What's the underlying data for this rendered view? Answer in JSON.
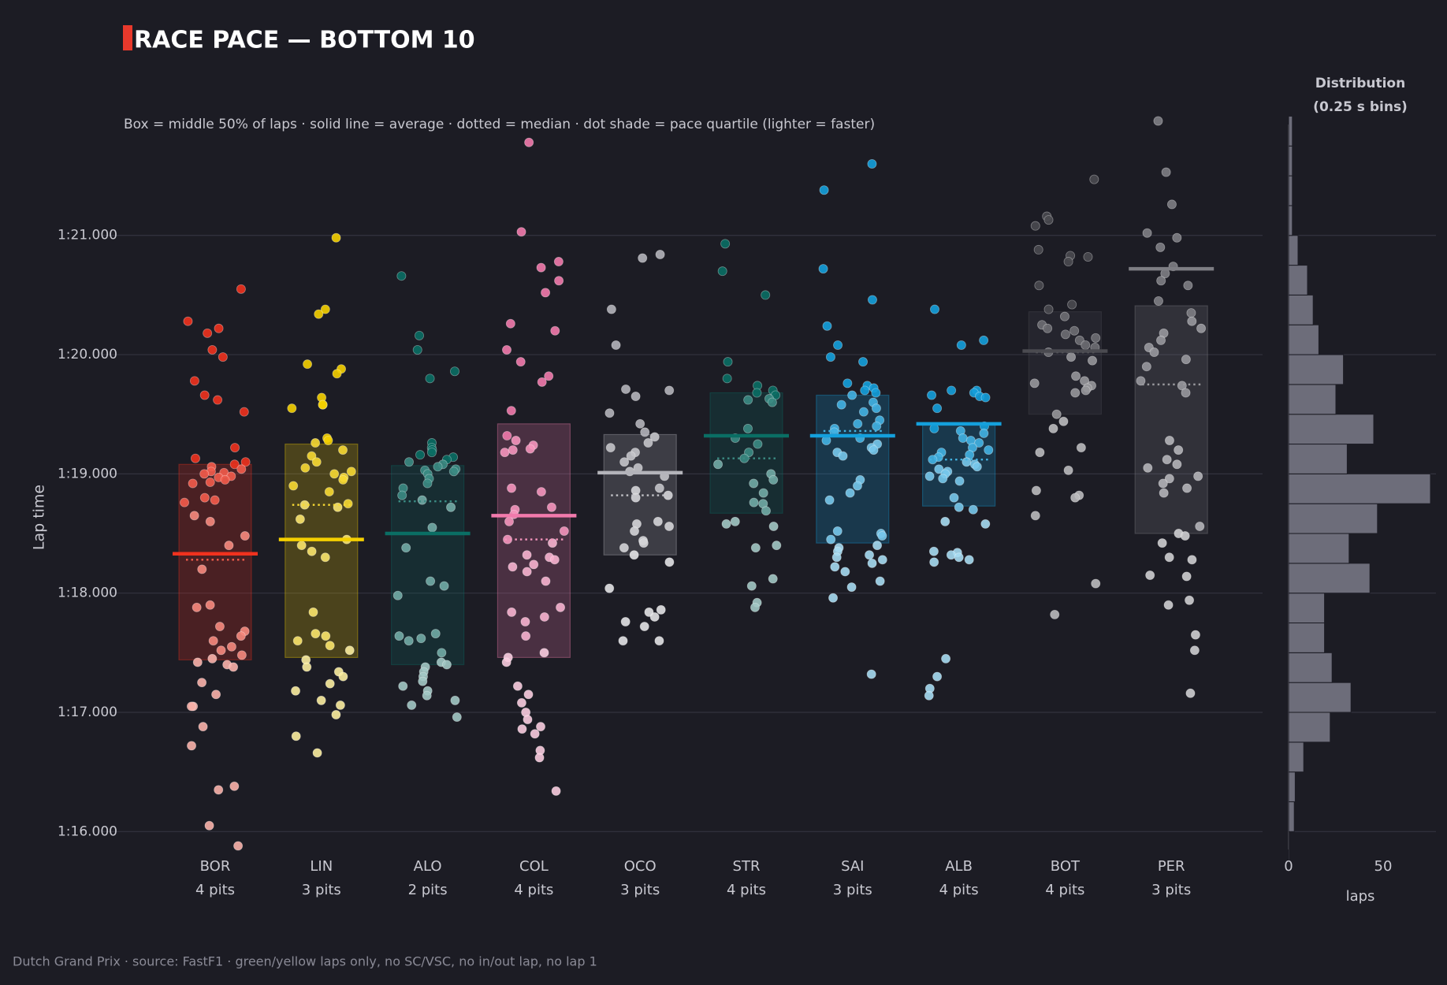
{
  "title": "RACE PACE — BOTTOM 10",
  "subtitle": "Box = middle 50% of laps · solid line = average · dotted = median · dot shade = pace quartile (lighter = faster)",
  "footer": "Dutch Grand Prix  ·  source: FastF1  ·  green/yellow laps only, no SC/VSC, no in/out lap, no lap 1",
  "colors": {
    "background": "#1c1c24",
    "accent": "#e8392c",
    "hist": "#6d6d7a"
  },
  "chart_data": [
    {
      "type": "box-strip",
      "ylabel": "Lap time",
      "y_ticks": [
        {
          "value": 76.0,
          "label": "1:16.000"
        },
        {
          "value": 77.0,
          "label": "1:17.000"
        },
        {
          "value": 78.0,
          "label": "1:18.000"
        },
        {
          "value": 79.0,
          "label": "1:19.000"
        },
        {
          "value": 80.0,
          "label": "1:20.000"
        },
        {
          "value": 81.0,
          "label": "1:21.000"
        }
      ],
      "ylim": [
        75.85,
        81.95
      ],
      "drivers": [
        {
          "code": "BOR",
          "pits": "4 pits",
          "color": "#f0321e",
          "q1": 77.44,
          "q3": 79.08,
          "mean": 78.33,
          "median": 78.28,
          "points": [
            80.55,
            80.28,
            80.22,
            80.18,
            80.04,
            79.98,
            79.78,
            79.66,
            79.62,
            79.52,
            79.22,
            79.13,
            79.1,
            79.08,
            79.06,
            79.04,
            79.02,
            79.01,
            79.0,
            78.98,
            78.97,
            78.95,
            78.93,
            78.92,
            78.8,
            78.78,
            78.76,
            78.65,
            78.6,
            78.48,
            78.4,
            78.2,
            77.9,
            77.88,
            77.72,
            77.68,
            77.64,
            77.6,
            77.55,
            77.52,
            77.48,
            77.45,
            77.42,
            77.4,
            77.38,
            77.25,
            77.15,
            77.05,
            77.05,
            76.88,
            76.72,
            76.38,
            76.35,
            76.05,
            75.88
          ]
        },
        {
          "code": "LIN",
          "pits": "3 pits",
          "color": "#f5d000",
          "q1": 77.46,
          "q3": 79.25,
          "mean": 78.45,
          "median": 78.74,
          "points": [
            80.98,
            80.38,
            80.34,
            79.92,
            79.88,
            79.84,
            79.64,
            79.58,
            79.58,
            79.55,
            79.3,
            79.28,
            79.26,
            79.2,
            79.15,
            79.1,
            79.05,
            79.02,
            79.0,
            78.97,
            78.95,
            78.9,
            78.85,
            78.75,
            78.74,
            78.72,
            78.62,
            78.45,
            78.4,
            78.35,
            78.3,
            77.84,
            77.66,
            77.64,
            77.6,
            77.56,
            77.52,
            77.44,
            77.38,
            77.34,
            77.3,
            77.24,
            77.18,
            77.1,
            77.06,
            76.98,
            76.8,
            76.66
          ]
        },
        {
          "code": "ALO",
          "pits": "2 pits",
          "color": "#0a6e64",
          "q1": 77.4,
          "q3": 79.07,
          "mean": 78.5,
          "median": 78.77,
          "points": [
            80.66,
            80.16,
            80.04,
            79.86,
            79.8,
            79.26,
            79.22,
            79.2,
            79.18,
            79.16,
            79.14,
            79.12,
            79.1,
            79.08,
            79.06,
            79.04,
            79.03,
            79.02,
            79.0,
            78.96,
            78.92,
            78.88,
            78.82,
            78.78,
            78.72,
            78.55,
            78.38,
            78.1,
            78.06,
            77.98,
            77.66,
            77.64,
            77.62,
            77.6,
            77.5,
            77.42,
            77.4,
            77.38,
            77.34,
            77.3,
            77.26,
            77.22,
            77.18,
            77.14,
            77.1,
            77.06,
            76.96
          ]
        },
        {
          "code": "COL",
          "pits": "4 pits",
          "color": "#f27aac",
          "q1": 77.46,
          "q3": 79.42,
          "mean": 78.65,
          "median": 78.45,
          "points": [
            81.78,
            81.03,
            80.78,
            80.73,
            80.62,
            80.52,
            80.26,
            80.2,
            80.04,
            79.94,
            79.82,
            79.77,
            79.53,
            79.32,
            79.28,
            79.24,
            79.21,
            79.2,
            79.18,
            78.88,
            78.85,
            78.72,
            78.7,
            78.66,
            78.6,
            78.52,
            78.45,
            78.42,
            78.32,
            78.3,
            78.28,
            78.24,
            78.22,
            78.18,
            78.1,
            77.88,
            77.84,
            77.8,
            77.76,
            77.64,
            77.5,
            77.46,
            77.42,
            77.22,
            77.15,
            77.08,
            77.0,
            76.94,
            76.88,
            76.86,
            76.82,
            76.68,
            76.62,
            76.34
          ]
        },
        {
          "code": "OCO",
          "pits": "3 pits",
          "color": "#b4b4ba",
          "q1": 78.32,
          "q3": 79.33,
          "mean": 79.01,
          "median": 78.82,
          "points": [
            80.84,
            80.81,
            80.38,
            80.08,
            79.71,
            79.7,
            79.65,
            79.51,
            79.42,
            79.35,
            79.31,
            79.26,
            79.22,
            79.18,
            79.15,
            79.1,
            79.05,
            79.02,
            78.98,
            78.88,
            78.86,
            78.82,
            78.8,
            78.6,
            78.58,
            78.56,
            78.52,
            78.44,
            78.42,
            78.38,
            78.32,
            78.26,
            78.04,
            77.86,
            77.84,
            77.8,
            77.76,
            77.72,
            77.6,
            77.6
          ]
        },
        {
          "code": "STR",
          "pits": "4 pits",
          "color": "#0a6e64",
          "q1": 78.67,
          "q3": 79.68,
          "mean": 79.32,
          "median": 79.13,
          "points": [
            80.93,
            80.7,
            80.5,
            79.94,
            79.8,
            79.74,
            79.7,
            79.68,
            79.66,
            79.63,
            79.62,
            79.6,
            79.38,
            79.3,
            79.25,
            79.18,
            79.13,
            79.08,
            79.0,
            78.95,
            78.92,
            78.84,
            78.76,
            78.75,
            78.69,
            78.6,
            78.58,
            78.56,
            78.4,
            78.38,
            78.12,
            78.06,
            77.92,
            77.88
          ]
        },
        {
          "code": "SAI",
          "pits": "3 pits",
          "color": "#14a0dc",
          "q1": 78.42,
          "q3": 79.66,
          "mean": 79.32,
          "median": 79.36,
          "points": [
            81.6,
            81.38,
            80.72,
            80.46,
            80.24,
            80.08,
            79.98,
            79.94,
            79.76,
            79.74,
            79.72,
            79.7,
            79.68,
            79.66,
            79.6,
            79.58,
            79.55,
            79.52,
            79.45,
            79.42,
            79.4,
            79.38,
            79.35,
            79.3,
            79.28,
            79.25,
            79.22,
            79.2,
            79.18,
            79.15,
            78.95,
            78.9,
            78.84,
            78.78,
            78.52,
            78.5,
            78.48,
            78.45,
            78.4,
            78.38,
            78.35,
            78.32,
            78.3,
            78.28,
            78.25,
            78.22,
            78.18,
            78.1,
            78.05,
            77.96,
            77.32
          ]
        },
        {
          "code": "ALB",
          "pits": "4 pits",
          "color": "#14a0dc",
          "q1": 78.73,
          "q3": 79.42,
          "mean": 79.42,
          "median": 79.12,
          "points": [
            80.38,
            80.12,
            80.08,
            79.7,
            79.7,
            79.68,
            79.66,
            79.65,
            79.64,
            79.55,
            79.4,
            79.38,
            79.36,
            79.34,
            79.3,
            79.28,
            79.26,
            79.22,
            79.2,
            79.18,
            79.16,
            79.14,
            79.12,
            79.1,
            79.08,
            79.06,
            79.04,
            79.02,
            79.0,
            78.98,
            78.96,
            78.94,
            78.8,
            78.72,
            78.7,
            78.6,
            78.58,
            78.35,
            78.34,
            78.32,
            78.3,
            78.28,
            78.26,
            77.45,
            77.3,
            77.2,
            77.14
          ]
        },
        {
          "code": "BOT",
          "pits": "4 pits",
          "color": "#4a4a50",
          "q1": 79.5,
          "q3": 80.36,
          "mean": 80.03,
          "median": 80.02,
          "points": [
            81.47,
            81.16,
            81.13,
            81.08,
            80.88,
            80.83,
            80.82,
            80.78,
            80.58,
            80.42,
            80.38,
            80.32,
            80.25,
            80.22,
            80.2,
            80.17,
            80.14,
            80.12,
            80.08,
            80.06,
            80.02,
            79.98,
            79.95,
            79.82,
            79.78,
            79.76,
            79.74,
            79.72,
            79.7,
            79.68,
            79.5,
            79.44,
            79.38,
            79.22,
            79.18,
            79.03,
            78.86,
            78.82,
            78.8,
            78.65,
            78.08,
            77.82
          ]
        },
        {
          "code": "PER",
          "pits": "3 pits",
          "color": "#7e7e84",
          "q1": 78.5,
          "q3": 80.41,
          "mean": 80.72,
          "median": 79.75,
          "points": [
            81.96,
            81.53,
            81.26,
            81.02,
            80.98,
            80.9,
            80.74,
            80.68,
            80.62,
            80.58,
            80.45,
            80.35,
            80.28,
            80.22,
            80.18,
            80.12,
            80.06,
            80.02,
            79.96,
            79.9,
            79.78,
            79.74,
            79.68,
            79.28,
            79.2,
            79.12,
            79.08,
            79.05,
            78.98,
            78.96,
            78.92,
            78.88,
            78.84,
            78.56,
            78.5,
            78.48,
            78.42,
            78.3,
            78.28,
            78.15,
            78.14,
            77.94,
            77.9,
            77.65,
            77.52,
            77.16
          ]
        }
      ]
    },
    {
      "type": "histogram",
      "title": "Distribution",
      "subtitle": "(0.25 s bins)",
      "xlabel": "laps",
      "x_ticks": [
        0,
        50
      ],
      "xlim": [
        0,
        80
      ],
      "bin_width": 0.25,
      "bins": [
        {
          "start": 75.75,
          "count": 0.5
        },
        {
          "start": 76.0,
          "count": 3
        },
        {
          "start": 76.25,
          "count": 3.5
        },
        {
          "start": 76.5,
          "count": 8
        },
        {
          "start": 76.75,
          "count": 22
        },
        {
          "start": 77.0,
          "count": 33
        },
        {
          "start": 77.25,
          "count": 23
        },
        {
          "start": 77.5,
          "count": 19
        },
        {
          "start": 77.75,
          "count": 19
        },
        {
          "start": 78.0,
          "count": 43
        },
        {
          "start": 78.25,
          "count": 32
        },
        {
          "start": 78.5,
          "count": 47
        },
        {
          "start": 78.75,
          "count": 75
        },
        {
          "start": 79.0,
          "count": 31
        },
        {
          "start": 79.25,
          "count": 45
        },
        {
          "start": 79.5,
          "count": 25
        },
        {
          "start": 79.75,
          "count": 29
        },
        {
          "start": 80.0,
          "count": 16
        },
        {
          "start": 80.25,
          "count": 13
        },
        {
          "start": 80.5,
          "count": 10
        },
        {
          "start": 80.75,
          "count": 5
        },
        {
          "start": 81.0,
          "count": 2
        },
        {
          "start": 81.25,
          "count": 2
        },
        {
          "start": 81.5,
          "count": 2
        },
        {
          "start": 81.75,
          "count": 2
        }
      ]
    }
  ]
}
